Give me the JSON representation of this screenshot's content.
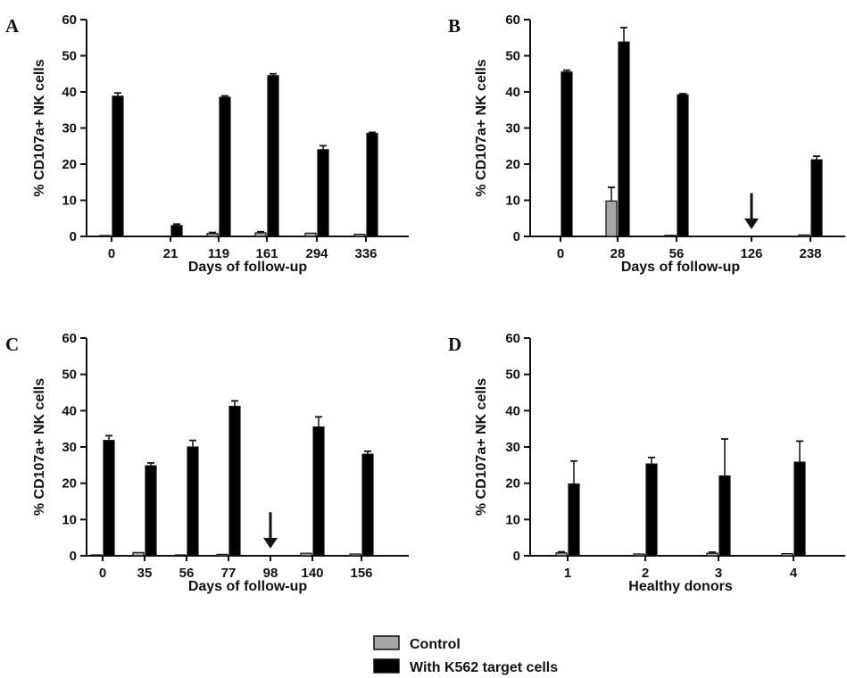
{
  "legend": {
    "control": "Control",
    "k562": "With K562 target cells"
  },
  "colors": {
    "control": "#a6a6a6",
    "k562": "#000000",
    "axis": "#111111"
  },
  "chart_data": [
    {
      "type": "bar",
      "panel": "A",
      "xlabel": "Days of follow-up",
      "ylabel": "% CD107a+ NK cells",
      "ylim": [
        0,
        60
      ],
      "yticks": [
        0,
        10,
        20,
        30,
        40,
        50,
        60
      ],
      "categories": [
        "0",
        "21",
        "119",
        "161",
        "294",
        "336"
      ],
      "series": [
        {
          "name": "Control",
          "values": [
            0.2,
            0,
            0.8,
            1.0,
            0.9,
            0.6
          ],
          "errors": [
            0.1,
            0,
            0.3,
            0.3,
            0.2,
            0.2
          ]
        },
        {
          "name": "With K562 target cells",
          "values": [
            38.8,
            3.0,
            38.5,
            44.5,
            24.0,
            28.5
          ],
          "errors": [
            0.9,
            0.4,
            0.4,
            0.5,
            1.1,
            0.3
          ]
        }
      ],
      "markers": []
    },
    {
      "type": "bar",
      "panel": "B",
      "xlabel": "Days of follow-up",
      "ylabel": "% CD107a+ NK cells",
      "ylim": [
        0,
        60
      ],
      "yticks": [
        0,
        10,
        20,
        30,
        40,
        50,
        60
      ],
      "categories": [
        "0",
        "28",
        "56",
        "126",
        "238"
      ],
      "series": [
        {
          "name": "Control",
          "values": [
            0,
            9.8,
            0.3,
            0,
            0.4
          ],
          "errors": [
            0,
            3.8,
            0.1,
            0,
            0.2
          ]
        },
        {
          "name": "With K562 target cells",
          "values": [
            45.5,
            53.8,
            39.2,
            0,
            21.2
          ],
          "errors": [
            0.5,
            4.0,
            0.3,
            0,
            1.0
          ]
        }
      ],
      "markers": [
        {
          "category": "126",
          "symbol": "arrow-down"
        }
      ]
    },
    {
      "type": "bar",
      "panel": "C",
      "xlabel": "Days of follow-up",
      "ylabel": "% CD107a+ NK cells",
      "ylim": [
        0,
        60
      ],
      "yticks": [
        0,
        10,
        20,
        30,
        40,
        50,
        60
      ],
      "categories": [
        "0",
        "35",
        "56",
        "77",
        "98",
        "140",
        "156"
      ],
      "series": [
        {
          "name": "Control",
          "values": [
            0.2,
            0.9,
            0.2,
            0.4,
            0,
            0.7,
            0.5
          ],
          "errors": [
            0.1,
            0.2,
            0.1,
            0.2,
            0,
            0.2,
            0.1
          ]
        },
        {
          "name": "With K562 target cells",
          "values": [
            31.8,
            24.8,
            30.0,
            41.2,
            0,
            35.5,
            28.0
          ],
          "errors": [
            1.3,
            0.8,
            1.8,
            1.5,
            0,
            2.8,
            0.8
          ]
        }
      ],
      "markers": [
        {
          "category": "98",
          "symbol": "arrow-down"
        }
      ]
    },
    {
      "type": "bar",
      "panel": "D",
      "xlabel": "Healthy donors",
      "ylabel": "% CD107a+ NK cells",
      "ylim": [
        0,
        60
      ],
      "yticks": [
        0,
        10,
        20,
        30,
        40,
        50,
        60
      ],
      "categories": [
        "1",
        "2",
        "3",
        "4"
      ],
      "series": [
        {
          "name": "Control",
          "values": [
            0.8,
            0.5,
            0.7,
            0.6
          ],
          "errors": [
            0.3,
            0.2,
            0.3,
            0.2
          ]
        },
        {
          "name": "With K562 target cells",
          "values": [
            19.8,
            25.3,
            22.0,
            25.8
          ],
          "errors": [
            6.3,
            1.8,
            10.2,
            5.8
          ]
        }
      ],
      "markers": []
    }
  ]
}
